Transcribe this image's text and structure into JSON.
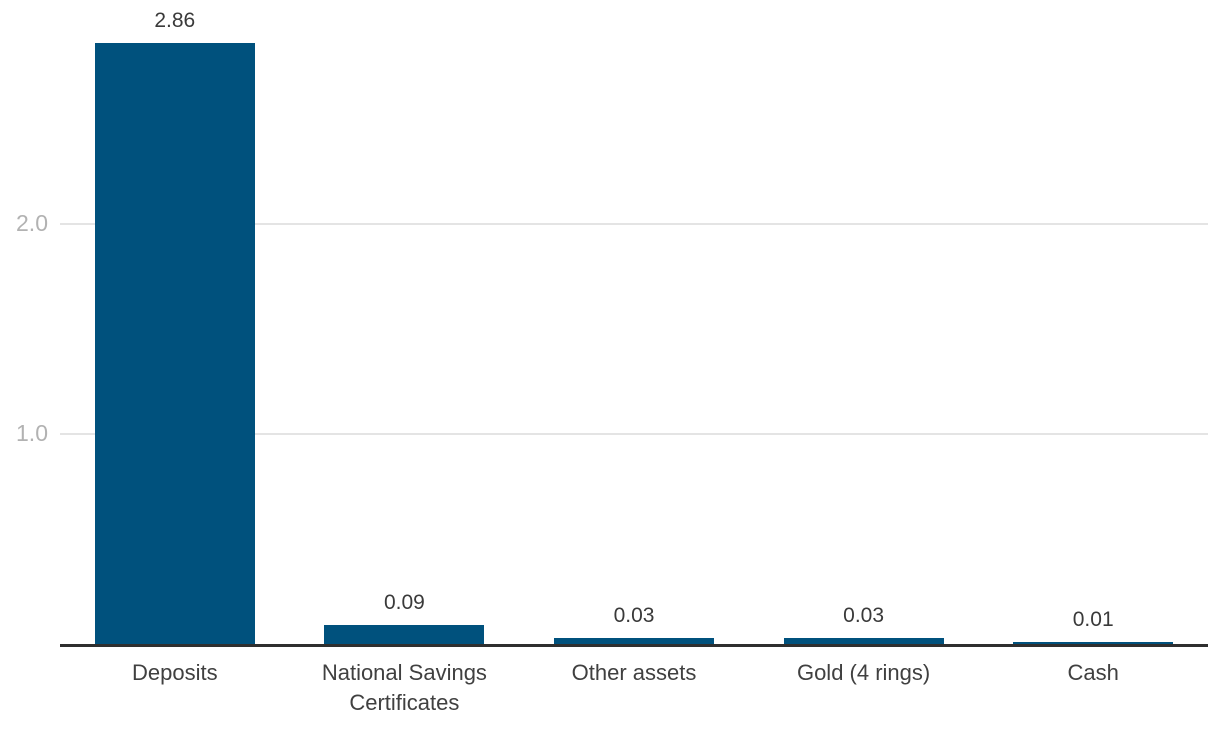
{
  "chart_data": {
    "type": "bar",
    "categories": [
      "Deposits",
      "National Savings\nCertificates",
      "Other assets",
      "Gold (4 rings)",
      "Cash"
    ],
    "values": [
      2.86,
      0.09,
      0.03,
      0.03,
      0.01
    ],
    "bar_labels": [
      "2.86",
      "0.09",
      "0.03",
      "0.03",
      "0.01"
    ],
    "yticks": [
      1.0,
      2.0
    ],
    "ytick_labels": [
      "1.0",
      "2.0"
    ],
    "ylim": [
      0,
      2.9
    ],
    "title": "",
    "xlabel": "",
    "ylabel": "",
    "grid": "horizontal-only",
    "legend": "none",
    "colors": {
      "bar": "#00517d",
      "axis_line": "#2f2f2f",
      "gridline": "#e4e4e4",
      "ytick_label": "#b2b2b2",
      "value_label": "#3a3a3a",
      "category_label": "#404040"
    }
  }
}
